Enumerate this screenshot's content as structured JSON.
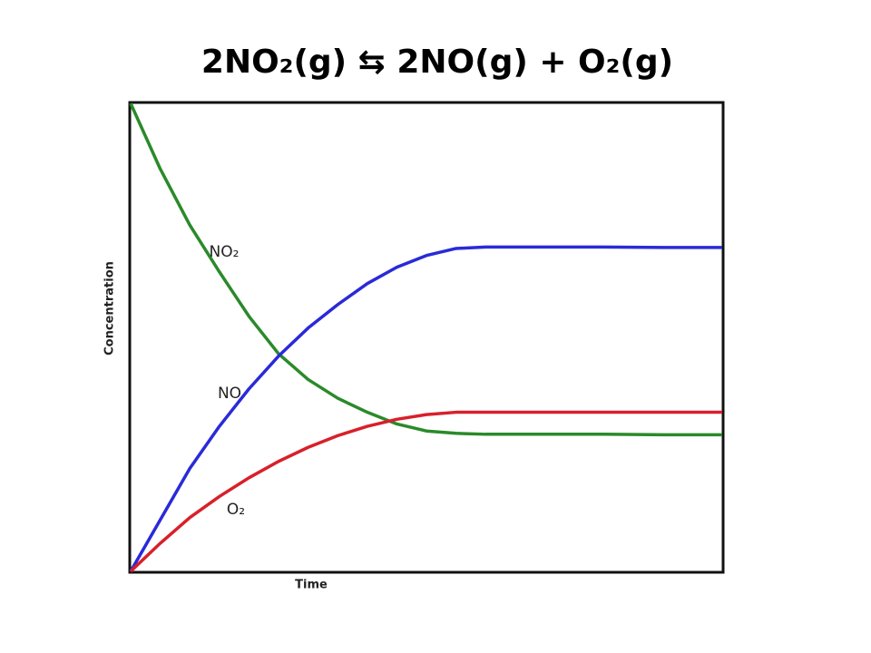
{
  "chart_data": {
    "type": "line",
    "title": "2NO₂(g) ⇆ 2NO(g) + O₂(g)",
    "x_label": "Time",
    "y_label": "Concentration",
    "x": [
      0,
      0.05,
      0.1,
      0.15,
      0.2,
      0.25,
      0.3,
      0.35,
      0.4,
      0.45,
      0.5,
      0.55,
      0.6,
      0.7,
      0.8,
      0.9,
      1.0
    ],
    "xlim": [
      0,
      1
    ],
    "ylim": [
      0,
      1
    ],
    "series": [
      {
        "name": "NO₂",
        "color": "#2a8a2a",
        "values": [
          1.0,
          0.86,
          0.74,
          0.64,
          0.545,
          0.465,
          0.41,
          0.37,
          0.34,
          0.315,
          0.3,
          0.295,
          0.293,
          0.293,
          0.293,
          0.292,
          0.292
        ]
      },
      {
        "name": "NO",
        "color": "#2a2ad8",
        "values": [
          0,
          0.11,
          0.22,
          0.31,
          0.39,
          0.46,
          0.52,
          0.57,
          0.615,
          0.65,
          0.675,
          0.69,
          0.693,
          0.693,
          0.693,
          0.692,
          0.692
        ]
      },
      {
        "name": "O₂",
        "color": "#d8202a",
        "values": [
          0,
          0.06,
          0.115,
          0.16,
          0.2,
          0.235,
          0.265,
          0.29,
          0.31,
          0.325,
          0.335,
          0.34,
          0.34,
          0.34,
          0.34,
          0.34,
          0.34
        ]
      }
    ]
  }
}
